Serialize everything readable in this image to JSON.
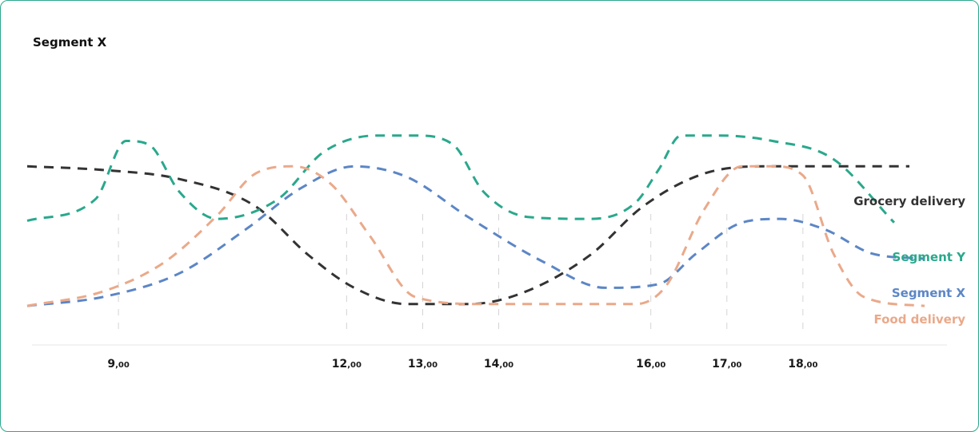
{
  "chart": {
    "title": "Segment X"
  },
  "chart_data": {
    "type": "line",
    "title": "Segment X",
    "xlabel": "",
    "ylabel": "",
    "x_range": [
      7.8,
      19.8
    ],
    "y_range": [
      0,
      100
    ],
    "grid": "dashed vertical lines at labeled ticks",
    "ticks": [
      {
        "value": 9,
        "hour": "9",
        "suffix": ",00"
      },
      {
        "value": 12,
        "hour": "12",
        "suffix": ",00"
      },
      {
        "value": 13,
        "hour": "13",
        "suffix": ",00"
      },
      {
        "value": 14,
        "hour": "14",
        "suffix": ",00"
      },
      {
        "value": 16,
        "hour": "16",
        "suffix": ",00"
      },
      {
        "value": 17,
        "hour": "17",
        "suffix": ",00"
      },
      {
        "value": 18,
        "hour": "18",
        "suffix": ",00"
      }
    ],
    "series": [
      {
        "name": "Grocery delivery",
        "color": "#333333",
        "x": [
          7.8,
          8.8,
          9.8,
          10.8,
          11.5,
          12.1,
          12.8,
          13.6,
          14.3,
          15.2,
          15.9,
          16.7,
          17.5,
          18.5,
          19.4
        ],
        "y": [
          84,
          82,
          77,
          62,
          35,
          17,
          8,
          8,
          14,
          35,
          62,
          80,
          84,
          84,
          84
        ]
      },
      {
        "name": "Segment Y",
        "color": "#2aa88c",
        "x": [
          7.8,
          8.7,
          9.1,
          9.4,
          9.8,
          10.3,
          11.1,
          11.7,
          12.4,
          12.9,
          13.4,
          13.8,
          14.4,
          15.2,
          15.8,
          16.1,
          16.4,
          16.9,
          17.6,
          18.4,
          19.2
        ],
        "y": [
          54,
          66,
          98,
          96,
          70,
          55,
          66,
          92,
          101,
          101,
          96,
          70,
          56,
          55,
          64,
          82,
          101,
          101,
          98,
          88,
          53
        ]
      },
      {
        "name": "Segment X",
        "color": "#5c86c6",
        "x": [
          7.8,
          8.8,
          9.8,
          10.7,
          11.4,
          12.1,
          12.8,
          13.6,
          14.6,
          15.4,
          16.1,
          16.6,
          17.2,
          17.7,
          18.3,
          18.9,
          19.6
        ],
        "y": [
          7,
          12,
          25,
          50,
          72,
          84,
          78,
          56,
          31,
          17,
          19,
          36,
          53,
          55,
          49,
          36,
          33
        ]
      },
      {
        "name": "Food delivery",
        "color": "#eaa98a",
        "x": [
          7.8,
          8.8,
          9.6,
          10.3,
          10.8,
          11.3,
          11.8,
          12.3,
          12.9,
          13.8,
          14.8,
          15.8,
          16.2,
          16.7,
          17.2,
          17.6,
          18.0,
          18.4,
          18.8,
          19.6
        ],
        "y": [
          7,
          15,
          31,
          57,
          80,
          84,
          74,
          46,
          12,
          8,
          8,
          8,
          18,
          60,
          84,
          84,
          79,
          36,
          12,
          7
        ]
      }
    ]
  }
}
